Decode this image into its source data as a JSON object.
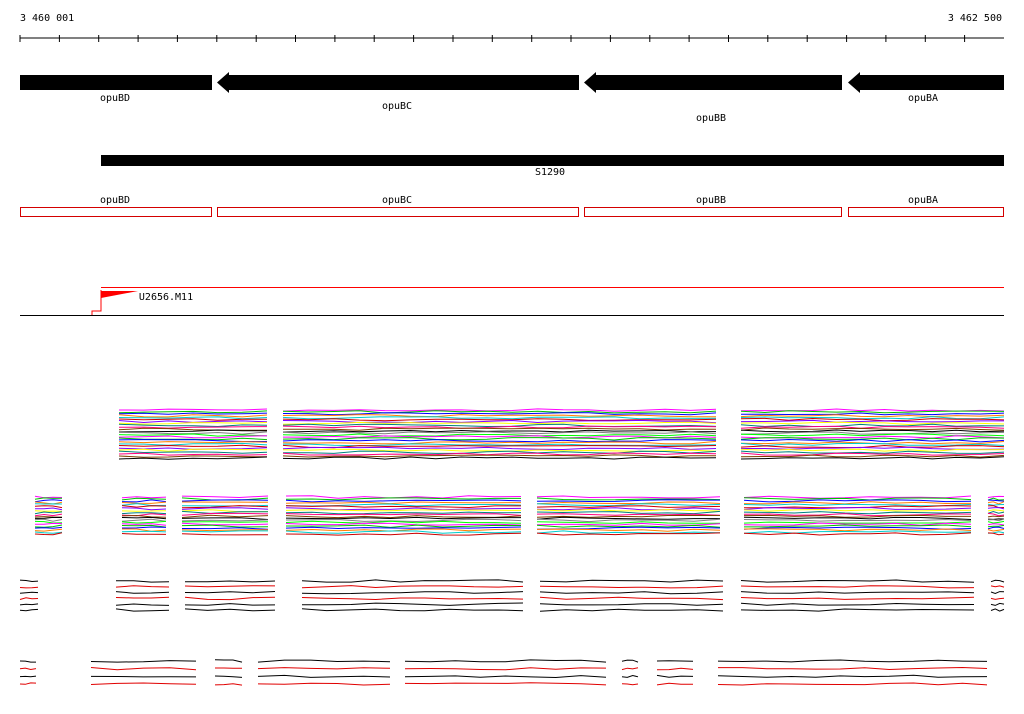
{
  "ruler": {
    "start_label": "3 460 001",
    "end_label": "3 462 500"
  },
  "genes": [
    {
      "name": "opuBD",
      "strand": "minus"
    },
    {
      "name": "opuBC",
      "strand": "minus"
    },
    {
      "name": "opuBB",
      "strand": "minus"
    },
    {
      "name": "opuBA",
      "strand": "minus"
    }
  ],
  "transcript": {
    "name": "S1290"
  },
  "gene_outlines": [
    "opuBD",
    "opuBC",
    "opuBB",
    "opuBA"
  ],
  "tss_feature": {
    "name": "U2656.M11"
  },
  "colors": {
    "gene": "#000000",
    "outline": "#d40000",
    "tss": "#ff0000",
    "traces": [
      "#ff00ff",
      "#00c000",
      "#0000ff",
      "#ff8000",
      "#00cccc",
      "#cc0000",
      "#8000ff",
      "#ffff00",
      "#008080",
      "#ff0080",
      "#804000",
      "#000000",
      "#808080",
      "#00ff00"
    ]
  }
}
